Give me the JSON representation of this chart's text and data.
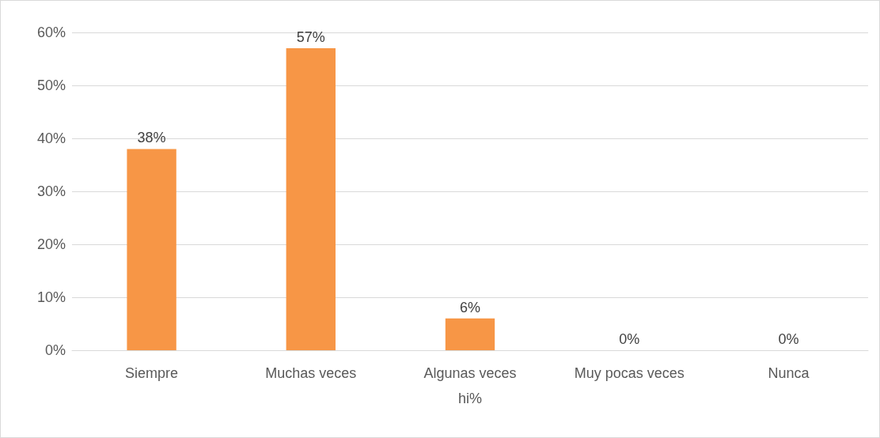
{
  "chart_data": {
    "type": "bar",
    "xlabel": "hi%",
    "categories": [
      "Siempre",
      "Muchas veces",
      "Algunas veces",
      "Muy pocas veces",
      "Nunca"
    ],
    "values": [
      38,
      57,
      6,
      0,
      0
    ],
    "color": "#f79646",
    "value_labels": [
      "38%",
      "57%",
      "6%",
      "0%",
      "0%"
    ],
    "ylim": [
      0,
      60
    ],
    "yticks": [
      {
        "value": 0,
        "label": "0%"
      },
      {
        "value": 10,
        "label": "10%"
      },
      {
        "value": 20,
        "label": "20%"
      },
      {
        "value": 30,
        "label": "30%"
      },
      {
        "value": 40,
        "label": "40%"
      },
      {
        "value": 50,
        "label": "50%"
      },
      {
        "value": 60,
        "label": "60%"
      }
    ],
    "grid": "y"
  }
}
